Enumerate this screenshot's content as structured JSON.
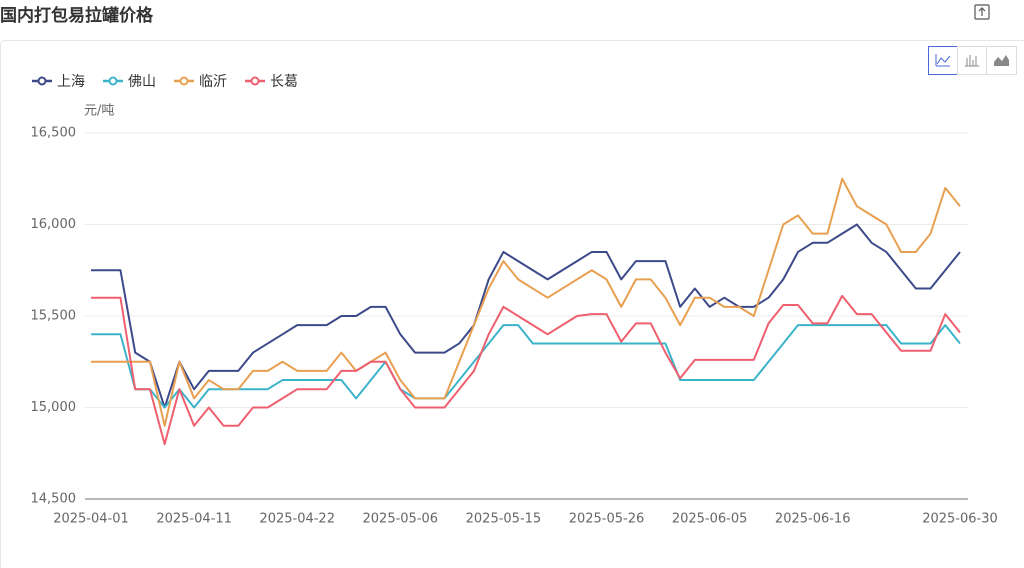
{
  "chart_data": {
    "type": "line",
    "title": "国内打包易拉罐价格",
    "y_axis_label": "元/吨",
    "categories": [
      "2025-04-01",
      null,
      null,
      null,
      null,
      null,
      null,
      "2025-04-11",
      null,
      null,
      null,
      null,
      null,
      null,
      "2025-04-22",
      null,
      null,
      null,
      null,
      null,
      null,
      "2025-05-06",
      null,
      null,
      null,
      null,
      null,
      null,
      "2025-05-15",
      null,
      null,
      null,
      null,
      null,
      null,
      "2025-05-26",
      null,
      null,
      null,
      null,
      null,
      null,
      "2025-06-05",
      null,
      null,
      null,
      null,
      null,
      null,
      "2025-06-16",
      null,
      null,
      null,
      null,
      null,
      null,
      null,
      null,
      null,
      "2025-06-30"
    ],
    "series": [
      {
        "name": "上海",
        "color": "#3d4a8a",
        "values": [
          15750,
          15750,
          15750,
          15300,
          15250,
          15000,
          15250,
          15100,
          15200,
          15200,
          15200,
          15300,
          15350,
          15400,
          15450,
          15450,
          15450,
          15500,
          15500,
          15550,
          15550,
          15400,
          15300,
          15300,
          15300,
          15350,
          15450,
          15700,
          15850,
          15800,
          15750,
          15700,
          15750,
          15800,
          15850,
          15850,
          15700,
          15800,
          15800,
          15800,
          15550,
          15650,
          15550,
          15600,
          15550,
          15550,
          15600,
          15700,
          15850,
          15900,
          15900,
          15950,
          16000,
          15900,
          15850,
          15750,
          15650,
          15650,
          15750,
          15850
        ]
      },
      {
        "name": "佛山",
        "color": "#3bb3c9",
        "values": [
          15400,
          15400,
          15400,
          15100,
          15100,
          15000,
          15100,
          15000,
          15100,
          15100,
          15100,
          15100,
          15100,
          15150,
          15150,
          15150,
          15150,
          15150,
          15050,
          15150,
          15250,
          15100,
          15050,
          15050,
          15050,
          15150,
          15250,
          15350,
          15450,
          15450,
          15350,
          15350,
          15350,
          15350,
          15350,
          15350,
          15350,
          15350,
          15350,
          15350,
          15150,
          15150,
          15150,
          15150,
          15150,
          15150,
          15250,
          15350,
          15450,
          15450,
          15450,
          15450,
          15450,
          15450,
          15450,
          15350,
          15350,
          15350,
          15450,
          15350
        ]
      },
      {
        "name": "临沂",
        "color": "#e89f50",
        "values": [
          15250,
          15250,
          15250,
          15250,
          15250,
          14900,
          15250,
          15050,
          15150,
          15100,
          15100,
          15200,
          15200,
          15250,
          15200,
          15200,
          15200,
          15300,
          15200,
          15250,
          15300,
          15150,
          15050,
          15050,
          15050,
          15250,
          15450,
          15650,
          15800,
          15700,
          15650,
          15600,
          15650,
          15700,
          15750,
          15700,
          15550,
          15700,
          15700,
          15600,
          15450,
          15600,
          15600,
          15550,
          15550,
          15500,
          15750,
          16000,
          16050,
          15950,
          15950,
          16250,
          16100,
          16050,
          16000,
          15850,
          15850,
          15950,
          16200,
          16100
        ]
      },
      {
        "name": "长葛",
        "color": "#ef5f6e",
        "values": [
          15600,
          15600,
          15600,
          15100,
          15100,
          14800,
          15100,
          14900,
          15000,
          14900,
          14900,
          15000,
          15000,
          15050,
          15100,
          15100,
          15100,
          15200,
          15200,
          15250,
          15250,
          15100,
          15000,
          15000,
          15000,
          15100,
          15200,
          15400,
          15550,
          15500,
          15450,
          15400,
          15450,
          15500,
          15510,
          15510,
          15360,
          15460,
          15460,
          15300,
          15160,
          15260,
          15260,
          15260,
          15260,
          15260,
          15460,
          15560,
          15560,
          15460,
          15460,
          15610,
          15510,
          15510,
          15410,
          15310,
          15310,
          15310,
          15510,
          15410
        ]
      }
    ],
    "ylim": [
      14500,
      16500
    ],
    "yticks": [
      {
        "value": 14500,
        "label": "14,500"
      },
      {
        "value": 15000,
        "label": "15,000"
      },
      {
        "value": 15500,
        "label": "15,500"
      },
      {
        "value": 16000,
        "label": "16,000"
      },
      {
        "value": 16500,
        "label": "16,500"
      }
    ],
    "grid": true,
    "legend": "top-left"
  }
}
